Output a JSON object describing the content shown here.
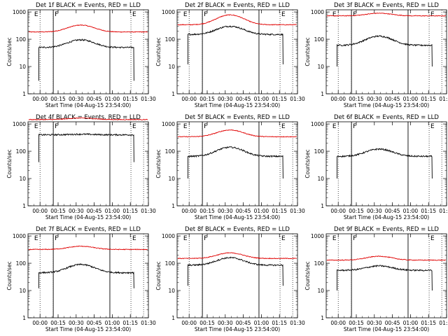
{
  "chart_data": {
    "type": "line",
    "title_suffix": " BLACK = Events, RED = LLD",
    "xlabel": "Start Time (04-Aug-15 23:54:00)",
    "ylabel": "Counts/sec",
    "yscale": "log",
    "ylim": [
      1,
      1200
    ],
    "y_ticks": [
      1,
      10,
      100,
      1000
    ],
    "y_tick_labels": [
      "1",
      "10",
      "100",
      "1000"
    ],
    "xlim_minutes": [
      -4,
      96
    ],
    "x_ticks": [
      6,
      21,
      36,
      51,
      66,
      81,
      96
    ],
    "x_tick_labels": [
      "00:00",
      "00:15",
      "00:30",
      "00:45",
      "01:00",
      "01:15",
      "01:30"
    ],
    "markers": [
      {
        "label": "E",
        "x": 0
      },
      {
        "label": "F",
        "x": 17
      },
      {
        "label": "E",
        "x": 81.5
      }
    ],
    "dotted_lines_x": [
      6,
      17,
      81.5,
      92
    ],
    "solid_lines_x": [
      17,
      64
    ],
    "series_colors": {
      "events": "#000000",
      "lld": "#e00000"
    },
    "panels": [
      {
        "det": "Det 1f",
        "events": {
          "start": 5,
          "end": 84,
          "base": 50,
          "peak": 95,
          "spike_end": 3
        },
        "lld": {
          "base": 185,
          "peak": 330
        }
      },
      {
        "det": "Det 2f",
        "events": {
          "start": 5,
          "end": 84,
          "base": 150,
          "peak": 300,
          "spike_end": 12
        },
        "lld": {
          "base": 340,
          "peak": 780
        }
      },
      {
        "det": "Det 3f",
        "events": {
          "start": 5,
          "end": 84,
          "base": 60,
          "peak": 130,
          "spike_end": 10
        },
        "lld": {
          "base": 720,
          "peak": 900
        }
      },
      {
        "det": "Det 4f",
        "events": {
          "start": 5,
          "end": 84,
          "base": 400,
          "peak": 420,
          "spike_end": 40
        },
        "lld": {
          "base": 1450,
          "peak": 1650
        }
      },
      {
        "det": "Det 5f",
        "events": {
          "start": 5,
          "end": 84,
          "base": 65,
          "peak": 140,
          "spike_end": 10
        },
        "lld": {
          "base": 340,
          "peak": 600
        }
      },
      {
        "det": "Det 6f",
        "events": {
          "start": 5,
          "end": 84,
          "base": 65,
          "peak": 120,
          "spike_end": 10
        },
        "lld": null
      },
      {
        "det": "Det 7f",
        "events": {
          "start": 5,
          "end": 84,
          "base": 45,
          "peak": 90,
          "spike_end": 12
        },
        "lld": {
          "base": 320,
          "peak": 420
        }
      },
      {
        "det": "Det 8f",
        "events": {
          "start": 5,
          "end": 84,
          "base": 85,
          "peak": 160,
          "spike_end": 15
        },
        "lld": {
          "base": 150,
          "peak": 240
        }
      },
      {
        "det": "Det 9f",
        "events": {
          "start": 5,
          "end": 84,
          "base": 55,
          "peak": 80,
          "spike_end": 10
        },
        "lld": {
          "base": 130,
          "peak": 180
        }
      }
    ]
  }
}
